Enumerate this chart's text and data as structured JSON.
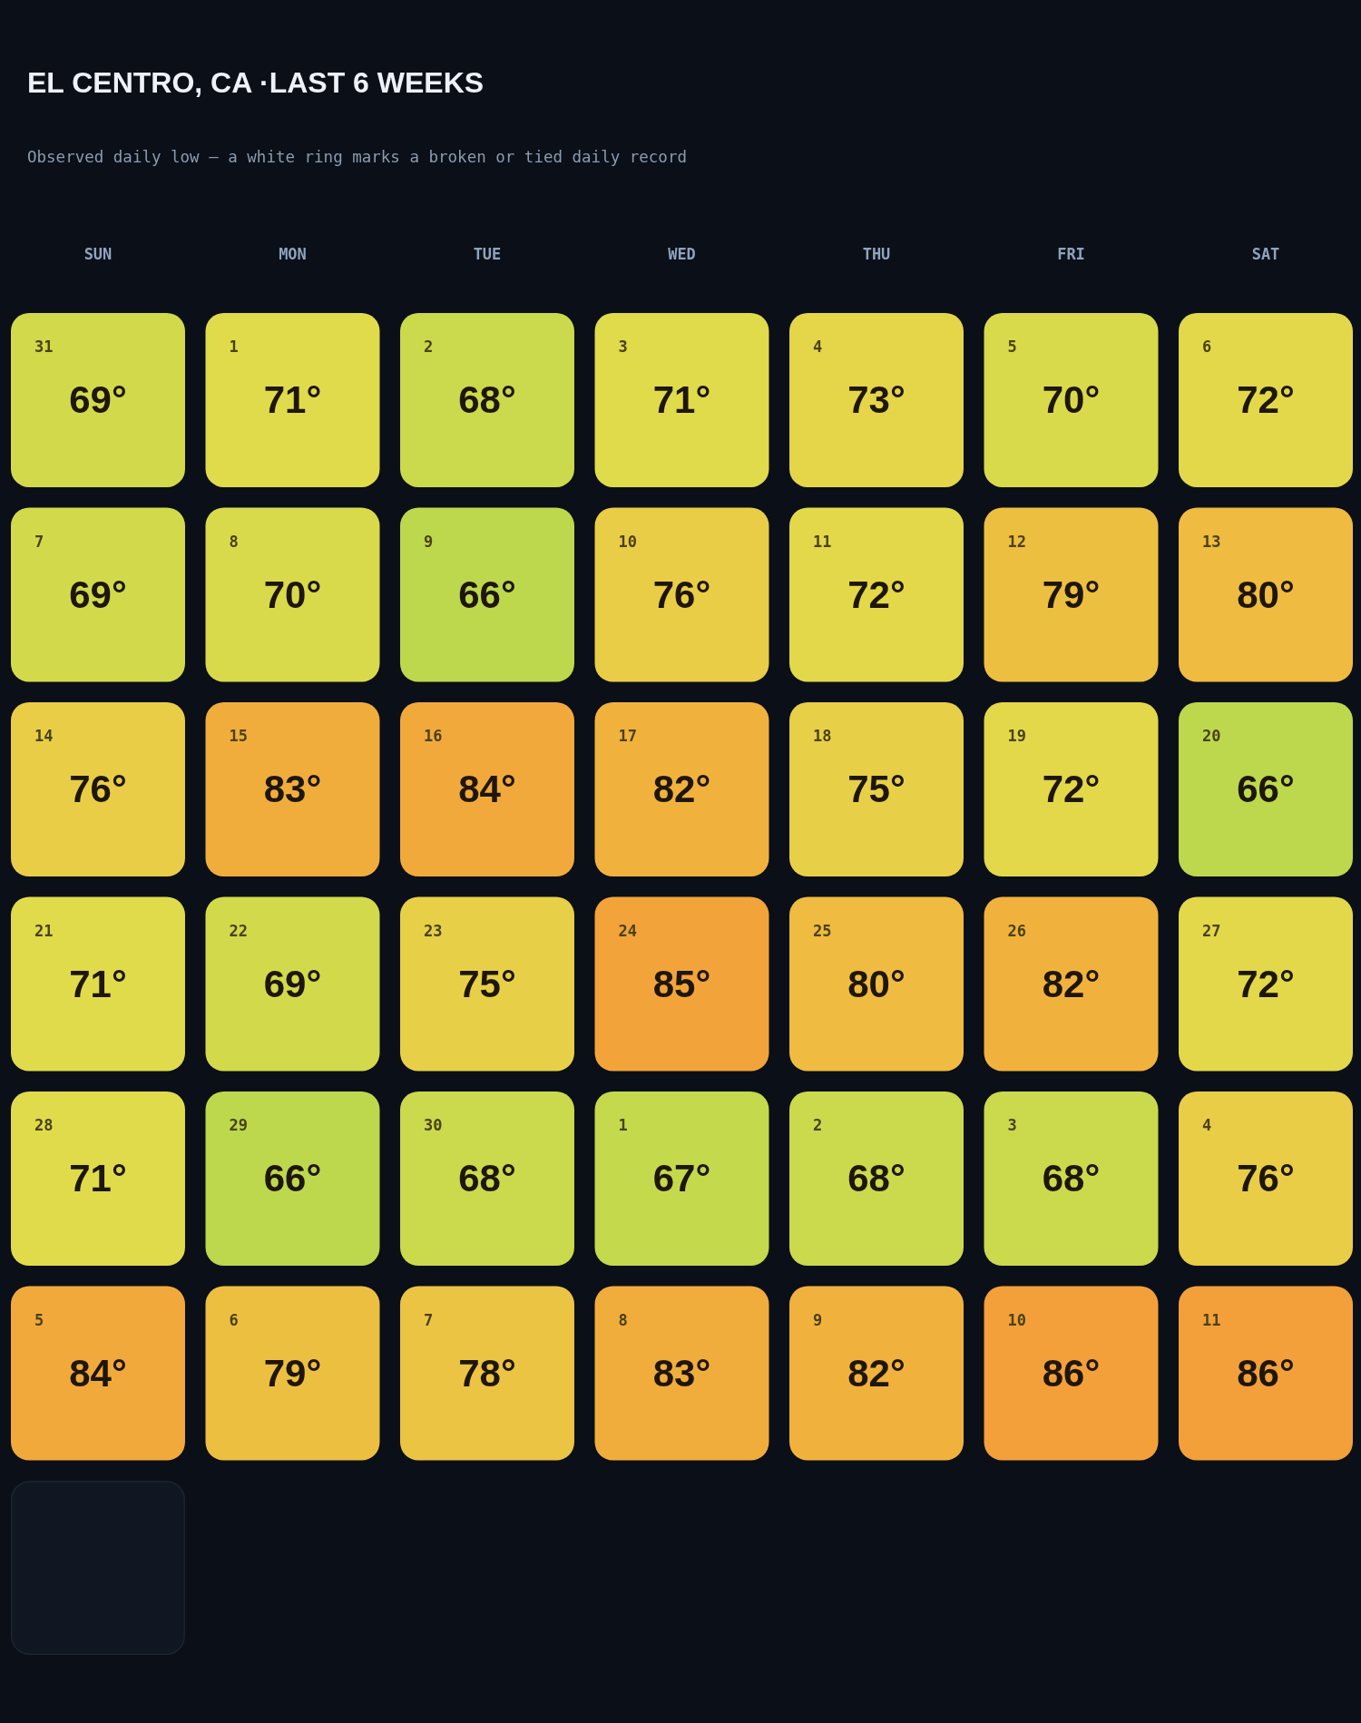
{
  "chart_data": {
    "type": "heatmap",
    "title": "EL CENTRO, CA ·LAST 6 WEEKS",
    "subtitle": "Observed daily low — a white ring marks a broken or tied daily record",
    "categories": [
      "SUN",
      "MON",
      "TUE",
      "WED",
      "THU",
      "FRI",
      "SAT"
    ],
    "y_categories": [
      null,
      null,
      null,
      null,
      null,
      null
    ],
    "cells": [
      [
        69,
        71,
        68,
        71,
        73,
        70,
        72
      ],
      [
        69,
        70,
        66,
        76,
        72,
        79,
        80
      ],
      [
        76,
        83,
        84,
        82,
        75,
        72,
        66
      ],
      [
        71,
        69,
        75,
        85,
        80,
        82,
        72
      ],
      [
        71,
        66,
        68,
        67,
        68,
        68,
        76
      ],
      [
        84,
        79,
        78,
        83,
        82,
        86,
        86
      ]
    ],
    "cell_labels": [
      [
        "69°",
        "71°",
        "68°",
        "71°",
        "73°",
        "70°",
        "72°"
      ],
      [
        "69°",
        "70°",
        "66°",
        "76°",
        "72°",
        "79°",
        "80°"
      ],
      [
        "76°",
        "83°",
        "84°",
        "82°",
        "75°",
        "72°",
        "66°"
      ],
      [
        "71°",
        "69°",
        "75°",
        "85°",
        "80°",
        "82°",
        "72°"
      ],
      [
        "71°",
        "66°",
        "68°",
        "67°",
        "68°",
        "68°",
        "76°"
      ],
      [
        "84°",
        "79°",
        "78°",
        "83°",
        "82°",
        "86°",
        "86°"
      ]
    ],
    "annotations": [
      "31",
      "1",
      "2",
      "3",
      "4",
      "5",
      "6",
      "7",
      "8",
      "9",
      "10",
      "11",
      "12",
      "13",
      "14",
      "15",
      "16",
      "17",
      "18",
      "19",
      "20",
      "21",
      "22",
      "23",
      "24",
      "25",
      "26",
      "27",
      "28",
      "29",
      "30",
      "1",
      "2",
      "3",
      "4",
      "5",
      "6",
      "7",
      "8",
      "9",
      "10",
      "11"
    ],
    "colors": [
      "#bdd84c",
      "#e0db4b",
      "#e9cd46",
      "#f0b63e",
      "#f3a03a"
    ]
  }
}
